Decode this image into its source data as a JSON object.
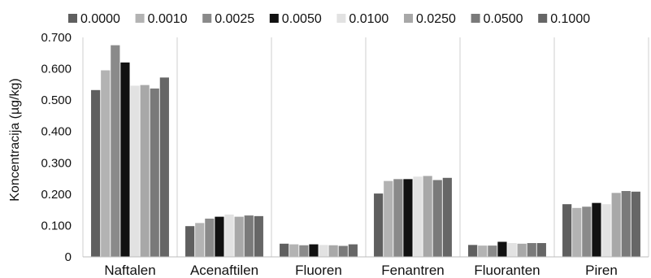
{
  "chart_data": {
    "type": "bar",
    "ylabel": "Koncentracija (µg/kg)",
    "xlabel": "",
    "ylim": [
      0,
      0.7
    ],
    "yticks": [
      "0",
      "0.100",
      "0.200",
      "0.300",
      "0.400",
      "0.500",
      "0.600",
      "0.700"
    ],
    "grid": "vertical separators between categories",
    "legend_position": "top",
    "categories": [
      "Naftalen",
      "Acenaftilen",
      "Fluoren",
      "Fenantren",
      "Fluoranten",
      "Piren"
    ],
    "series": [
      {
        "name": "0.0000",
        "color": "#5f5f5f",
        "values": [
          0.532,
          0.098,
          0.042,
          0.202,
          0.038,
          0.168
        ]
      },
      {
        "name": "0.0010",
        "color": "#b3b3b3",
        "values": [
          0.595,
          0.108,
          0.04,
          0.242,
          0.036,
          0.156
        ]
      },
      {
        "name": "0.0025",
        "color": "#8a8a8a",
        "values": [
          0.675,
          0.122,
          0.037,
          0.248,
          0.036,
          0.16
        ]
      },
      {
        "name": "0.0050",
        "color": "#111111",
        "values": [
          0.62,
          0.128,
          0.04,
          0.248,
          0.048,
          0.172
        ]
      },
      {
        "name": "0.0100",
        "color": "#e2e2e2",
        "values": [
          0.546,
          0.135,
          0.038,
          0.256,
          0.044,
          0.168
        ]
      },
      {
        "name": "0.0250",
        "color": "#a8a8a8",
        "values": [
          0.548,
          0.128,
          0.037,
          0.258,
          0.042,
          0.204
        ]
      },
      {
        "name": "0.0500",
        "color": "#7a7a7a",
        "values": [
          0.537,
          0.132,
          0.035,
          0.245,
          0.044,
          0.21
        ]
      },
      {
        "name": "0.1000",
        "color": "#666666",
        "values": [
          0.572,
          0.13,
          0.04,
          0.252,
          0.044,
          0.208
        ]
      }
    ]
  }
}
